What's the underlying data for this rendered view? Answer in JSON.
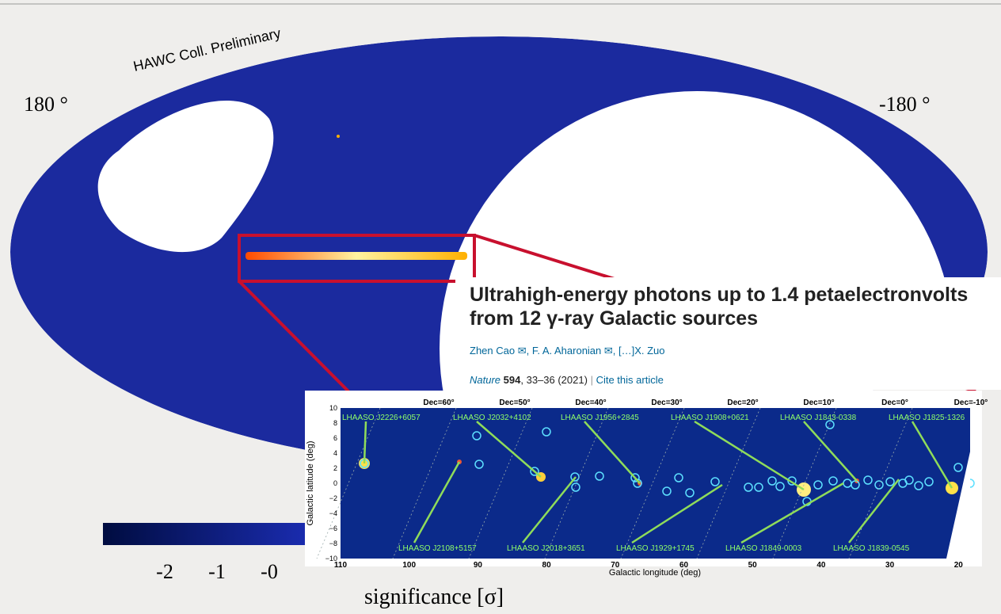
{
  "skymap": {
    "annotation": "HAWC Coll. Preliminary",
    "left_label": "180 °",
    "right_label": "-180 °",
    "colorbar_ticks": [
      "-2",
      "-1",
      "-0"
    ],
    "colorbar_label": "significance [σ]"
  },
  "article": {
    "title_lines": [
      "Ultrahigh-energy photons up to 1.4 petaelectronvolts",
      "from 12 γ-ray Galactic sources"
    ],
    "authors": "Zhen Cao ✉, F. A. Aharonian ✉, […]X. Zuo",
    "journal": "Nature",
    "volume": "594",
    "pages": ", 33–36 (2021)",
    "separator": "|",
    "cite": "Cite this article"
  },
  "figure": {
    "dec_labels": [
      "Dec=60°",
      "Dec=50°",
      "Dec=40°",
      "Dec=30°",
      "Dec=20°",
      "Dec=10°",
      "Dec=0°",
      "Dec=-10°"
    ],
    "top_sources": [
      "LHAASO J2226+6057",
      "LHAASO J2032+4102",
      "LHAASO J1956+2845",
      "LHAASO J1908+0621",
      "LHAASO J1843-0338",
      "LHAASO J1825-1326"
    ],
    "bottom_sources": [
      "LHAASO J2108+5157",
      "LHAASO J2018+3651",
      "LHAASO J1929+1745",
      "LHAASO J1849-0003",
      "LHAASO J1839-0545"
    ],
    "y_ticks": [
      "10",
      "8",
      "6",
      "4",
      "2",
      "0",
      "−2",
      "−4",
      "−6",
      "−8",
      "−10"
    ],
    "x_ticks": [
      "110",
      "100",
      "90",
      "80",
      "70",
      "60",
      "50",
      "40",
      "30",
      "20"
    ],
    "y_label": "Galactic latitude (deg)",
    "x_label": "Galactic longitude (deg)"
  }
}
